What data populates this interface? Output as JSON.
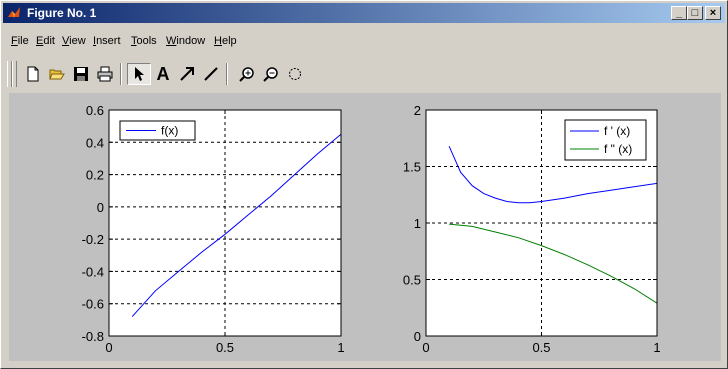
{
  "window": {
    "title": "Figure No. 1",
    "caption_buttons": {
      "minimize": "_",
      "maximize": "□",
      "close": "×"
    }
  },
  "menu": {
    "items": [
      "File",
      "Edit",
      "View",
      "Insert",
      "Tools",
      "Window",
      "Help"
    ]
  },
  "toolbar": {
    "buttons": [
      "new-figure",
      "open-file",
      "save",
      "print",
      "edit-plot-arrow",
      "insert-text",
      "insert-arrow",
      "insert-line",
      "zoom-in",
      "zoom-out",
      "rotate-3d"
    ],
    "active": "edit-plot-arrow",
    "text_tool_glyph": "A"
  },
  "colors": {
    "background": "#c0c0c0",
    "axes_bg": "#ffffff",
    "series_blue": "#0000ff",
    "series_green": "#008000",
    "titlebar_start": "#0a246a",
    "titlebar_end": "#a6caf0"
  },
  "chart_data": [
    {
      "type": "line",
      "xlim": [
        0,
        1
      ],
      "ylim": [
        -0.8,
        0.6
      ],
      "xticks": [
        "0",
        "0.5",
        "1"
      ],
      "yticks": [
        "0.6",
        "0.4",
        "0.2",
        "0",
        "-0.2",
        "-0.4",
        "-0.6",
        "-0.8"
      ],
      "ytick_values": [
        0.6,
        0.4,
        0.2,
        0,
        -0.2,
        -0.4,
        -0.6,
        -0.8
      ],
      "xtick_values": [
        0,
        0.5,
        1
      ],
      "grid": true,
      "legend_position": "top-left",
      "series": [
        {
          "name": "f(x)",
          "color": "#0000ff",
          "x": [
            0.1,
            0.2,
            0.3,
            0.4,
            0.5,
            0.6,
            0.7,
            0.8,
            0.9,
            1.0
          ],
          "y": [
            -0.68,
            -0.52,
            -0.4,
            -0.28,
            -0.17,
            -0.05,
            0.07,
            0.2,
            0.33,
            0.45
          ]
        }
      ]
    },
    {
      "type": "line",
      "xlim": [
        0,
        1
      ],
      "ylim": [
        0,
        2
      ],
      "xticks": [
        "0",
        "0.5",
        "1"
      ],
      "yticks": [
        "2",
        "1.5",
        "1",
        "0.5",
        "0"
      ],
      "ytick_values": [
        2,
        1.5,
        1,
        0.5,
        0
      ],
      "xtick_values": [
        0,
        0.5,
        1
      ],
      "grid": true,
      "legend_position": "top-right",
      "series": [
        {
          "name": "f ' (x)",
          "color": "#0000ff",
          "x": [
            0.1,
            0.15,
            0.2,
            0.25,
            0.3,
            0.35,
            0.4,
            0.45,
            0.5,
            0.6,
            0.7,
            0.8,
            0.9,
            1.0
          ],
          "y": [
            1.68,
            1.45,
            1.33,
            1.26,
            1.22,
            1.19,
            1.18,
            1.18,
            1.19,
            1.22,
            1.26,
            1.29,
            1.32,
            1.35
          ]
        },
        {
          "name": "f \" (x)",
          "color": "#008000",
          "x": [
            0.1,
            0.2,
            0.3,
            0.4,
            0.5,
            0.6,
            0.7,
            0.8,
            0.9,
            1.0
          ],
          "y": [
            0.99,
            0.97,
            0.92,
            0.87,
            0.8,
            0.72,
            0.63,
            0.53,
            0.42,
            0.29
          ]
        }
      ]
    }
  ]
}
